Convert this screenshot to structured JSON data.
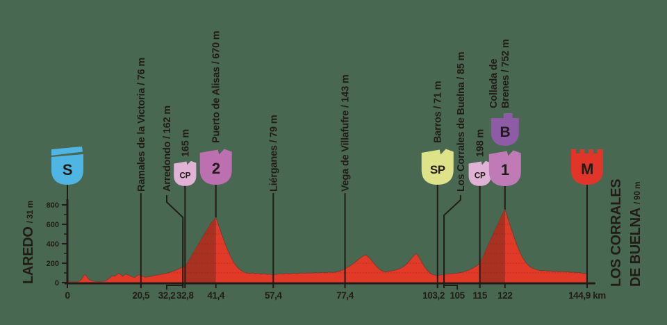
{
  "colors": {
    "background": "#496851",
    "ink": "#211C17",
    "profile_red": "#E23A28",
    "climb_dark_red": "#A93122",
    "start_blue": "#4FB6E3",
    "cp_pink": "#E0B3D6",
    "cat2_orchid": "#BC70AF",
    "cat1_orchid": "#C07BB7",
    "bonif_purple": "#8E5BA6",
    "sprint_yellow": "#DEE289",
    "finish_red": "#E1352A",
    "badge_text_light": "#FFFFFF",
    "badge_text_dark": "#26211D"
  },
  "start": {
    "name": "LAREDO",
    "elev": "/ 31 m"
  },
  "finish": {
    "name_line1": "LOS CORRALES",
    "name_line2": "DE BUELNA",
    "elev": "/ 90 m"
  },
  "chart_data": {
    "type": "area",
    "title": "Stage elevation profile Laredo - Los Corrales de Buelna",
    "xlabel": "km",
    "ylabel": "m",
    "xlim": [
      0,
      144.9
    ],
    "ylim": [
      0,
      800
    ],
    "y_ticks": [
      0,
      200,
      400,
      600,
      800
    ],
    "y_minor_ticks": [
      100,
      300,
      500,
      700
    ],
    "x_ticks": [
      {
        "km": 0,
        "label": "0"
      },
      {
        "km": 20.5,
        "label": "20,5"
      },
      {
        "km": 32.2,
        "label": "32,2",
        "label_km": 27.7,
        "elbow": true
      },
      {
        "km": 32.8,
        "label": "32,8"
      },
      {
        "km": 41.4,
        "label": "41,4"
      },
      {
        "km": 57.4,
        "label": "57,4"
      },
      {
        "km": 77.4,
        "label": "77,4"
      },
      {
        "km": 103.2,
        "label": "103,2",
        "label_km": 102.1
      },
      {
        "km": 105,
        "label": "105",
        "label_km": 108.7,
        "elbow": true
      },
      {
        "km": 115,
        "label": "115"
      },
      {
        "km": 122,
        "label": "122"
      },
      {
        "km": 144.9,
        "label": "144,9 km"
      }
    ],
    "climb_segments": [
      {
        "from": 32.8,
        "to": 41.4
      },
      {
        "from": 115,
        "to": 122
      }
    ],
    "waypoints": [
      {
        "km": 0,
        "badges": [
          {
            "shape": "pennant",
            "text": "S",
            "fill": "#4FB6E3",
            "text_fill": "#FFFFFF",
            "size": "lg"
          }
        ]
      },
      {
        "km": 20.5,
        "label": "Ramales de la Victoria / 76 m"
      },
      {
        "km": 32.2,
        "label": "Arredondo / 162 m",
        "label_km": 27.7,
        "elbow": true
      },
      {
        "km": 32.8,
        "label": "165 m",
        "badges": [
          {
            "shape": "flag",
            "text": "CP",
            "fill": "#E0B3D6",
            "text_fill": "#26211D",
            "size": "sm"
          }
        ]
      },
      {
        "km": 41.4,
        "label": "Puerto de Alisas / 670 m",
        "line_to": "peak",
        "badges": [
          {
            "shape": "flag",
            "text": "2",
            "fill": "#BC70AF",
            "text_fill": "#FFFFFF",
            "size": "lg"
          }
        ]
      },
      {
        "km": 57.4,
        "label": "Liérganes / 79 m"
      },
      {
        "km": 77.4,
        "label": "Vega de Villafufre / 143 m"
      },
      {
        "km": 103.2,
        "label": "Barros / 71 m",
        "badges": [
          {
            "shape": "flag",
            "text": "SP",
            "fill": "#DEE289",
            "text_fill": "#26211D",
            "size": "lg"
          }
        ]
      },
      {
        "km": 105,
        "label": "Los Corrales de Buelna / 85 m",
        "label_km": 109.6,
        "elbow": true
      },
      {
        "km": 115,
        "label": "198 m",
        "badges": [
          {
            "shape": "flag",
            "text": "CP",
            "fill": "#E0B3D6",
            "text_fill": "#26211D",
            "size": "sm"
          }
        ]
      },
      {
        "km": 122,
        "label_lines": [
          "Collada de",
          "Brenes / 752 m"
        ],
        "line_to": "peak",
        "badges": [
          {
            "shape": "tab",
            "text": "B",
            "fill": "#8E5BA6",
            "text_fill": "#FFFFFF",
            "size": "tab"
          },
          {
            "shape": "flag",
            "text": "1",
            "fill": "#C07BB7",
            "text_fill": "#FFFFFF",
            "size": "lg"
          }
        ]
      },
      {
        "km": 144.9,
        "badges": [
          {
            "shape": "castle",
            "text": "M",
            "fill": "#E1352A",
            "text_fill": "#FFFFFF",
            "size": "lg"
          }
        ]
      }
    ],
    "profile_points": [
      [
        0,
        18
      ],
      [
        0.8,
        10
      ],
      [
        1.6,
        8
      ],
      [
        2.4,
        9
      ],
      [
        3.2,
        12
      ],
      [
        3.8,
        28
      ],
      [
        4.4,
        62
      ],
      [
        4.9,
        85
      ],
      [
        5.4,
        62
      ],
      [
        6,
        34
      ],
      [
        6.6,
        20
      ],
      [
        7.4,
        14
      ],
      [
        8.2,
        11
      ],
      [
        9,
        10
      ],
      [
        9.8,
        12
      ],
      [
        10.6,
        16
      ],
      [
        11.2,
        30
      ],
      [
        11.9,
        52
      ],
      [
        12.6,
        72
      ],
      [
        13.1,
        64
      ],
      [
        13.7,
        78
      ],
      [
        14.3,
        95
      ],
      [
        14.8,
        86
      ],
      [
        15.4,
        64
      ],
      [
        16,
        82
      ],
      [
        16.5,
        88
      ],
      [
        17,
        76
      ],
      [
        17.6,
        68
      ],
      [
        18.2,
        58
      ],
      [
        18.8,
        52
      ],
      [
        19.4,
        72
      ],
      [
        20,
        80
      ],
      [
        20.5,
        76
      ],
      [
        21.1,
        62
      ],
      [
        21.8,
        56
      ],
      [
        22.6,
        60
      ],
      [
        23.4,
        66
      ],
      [
        24.2,
        72
      ],
      [
        25,
        78
      ],
      [
        26,
        84
      ],
      [
        27,
        92
      ],
      [
        28,
        100
      ],
      [
        29,
        110
      ],
      [
        30,
        124
      ],
      [
        31,
        140
      ],
      [
        31.7,
        152
      ],
      [
        32.2,
        162
      ],
      [
        32.8,
        165
      ],
      [
        33.6,
        212
      ],
      [
        34.4,
        262
      ],
      [
        35.2,
        312
      ],
      [
        36,
        362
      ],
      [
        36.8,
        412
      ],
      [
        37.6,
        462
      ],
      [
        38.4,
        512
      ],
      [
        39.2,
        562
      ],
      [
        40,
        612
      ],
      [
        40.8,
        645
      ],
      [
        41.4,
        670
      ],
      [
        42,
        608
      ],
      [
        42.8,
        520
      ],
      [
        43.6,
        438
      ],
      [
        44.4,
        360
      ],
      [
        45.2,
        292
      ],
      [
        46,
        232
      ],
      [
        46.8,
        185
      ],
      [
        47.6,
        150
      ],
      [
        48.4,
        126
      ],
      [
        49.2,
        110
      ],
      [
        50,
        98
      ],
      [
        50.8,
        92
      ],
      [
        51.6,
        100
      ],
      [
        52.4,
        90
      ],
      [
        53.2,
        97
      ],
      [
        54,
        86
      ],
      [
        54.8,
        93
      ],
      [
        55.6,
        84
      ],
      [
        56.4,
        88
      ],
      [
        57.4,
        79
      ],
      [
        58.4,
        86
      ],
      [
        59.2,
        92
      ],
      [
        60,
        87
      ],
      [
        61,
        95
      ],
      [
        62,
        89
      ],
      [
        63,
        97
      ],
      [
        64,
        92
      ],
      [
        65,
        99
      ],
      [
        66,
        94
      ],
      [
        67,
        101
      ],
      [
        68,
        97
      ],
      [
        69,
        103
      ],
      [
        70,
        99
      ],
      [
        71,
        106
      ],
      [
        72,
        101
      ],
      [
        73,
        108
      ],
      [
        74,
        104
      ],
      [
        75,
        110
      ],
      [
        76,
        118
      ],
      [
        77.4,
        143
      ],
      [
        78.4,
        162
      ],
      [
        79.4,
        188
      ],
      [
        80.4,
        215
      ],
      [
        81.4,
        245
      ],
      [
        82.4,
        272
      ],
      [
        83.2,
        285
      ],
      [
        84,
        262
      ],
      [
        84.8,
        228
      ],
      [
        85.6,
        192
      ],
      [
        86.4,
        158
      ],
      [
        87.2,
        132
      ],
      [
        88,
        116
      ],
      [
        88.8,
        110
      ],
      [
        89.6,
        116
      ],
      [
        90.4,
        122
      ],
      [
        91.2,
        128
      ],
      [
        92,
        136
      ],
      [
        92.8,
        146
      ],
      [
        93.6,
        162
      ],
      [
        94.4,
        185
      ],
      [
        95.2,
        215
      ],
      [
        96,
        252
      ],
      [
        96.8,
        286
      ],
      [
        97.3,
        300
      ],
      [
        98,
        262
      ],
      [
        98.8,
        210
      ],
      [
        99.6,
        162
      ],
      [
        100.4,
        122
      ],
      [
        101.2,
        95
      ],
      [
        102,
        82
      ],
      [
        103.2,
        71
      ],
      [
        104,
        78
      ],
      [
        105,
        85
      ],
      [
        106,
        88
      ],
      [
        107,
        91
      ],
      [
        108,
        94
      ],
      [
        109,
        99
      ],
      [
        110,
        106
      ],
      [
        111,
        116
      ],
      [
        112,
        130
      ],
      [
        113,
        148
      ],
      [
        114,
        170
      ],
      [
        115,
        198
      ],
      [
        115.8,
        262
      ],
      [
        116.6,
        328
      ],
      [
        117.4,
        394
      ],
      [
        118.2,
        460
      ],
      [
        119,
        524
      ],
      [
        119.8,
        588
      ],
      [
        120.6,
        652
      ],
      [
        121.4,
        716
      ],
      [
        122,
        752
      ],
      [
        122.7,
        672
      ],
      [
        123.5,
        580
      ],
      [
        124.3,
        492
      ],
      [
        125.1,
        410
      ],
      [
        125.9,
        336
      ],
      [
        126.7,
        272
      ],
      [
        127.5,
        222
      ],
      [
        128.3,
        186
      ],
      [
        129.1,
        160
      ],
      [
        129.9,
        144
      ],
      [
        130.7,
        134
      ],
      [
        131.5,
        127
      ],
      [
        132.3,
        121
      ],
      [
        133.1,
        125
      ],
      [
        133.9,
        117
      ],
      [
        134.7,
        121
      ],
      [
        135.5,
        113
      ],
      [
        136.3,
        118
      ],
      [
        137.1,
        110
      ],
      [
        137.9,
        115
      ],
      [
        138.7,
        108
      ],
      [
        139.5,
        112
      ],
      [
        140.3,
        104
      ],
      [
        141.1,
        108
      ],
      [
        141.9,
        101
      ],
      [
        142.7,
        104
      ],
      [
        143.5,
        97
      ],
      [
        144.2,
        93
      ],
      [
        144.9,
        90
      ]
    ]
  }
}
